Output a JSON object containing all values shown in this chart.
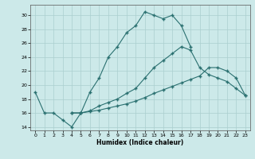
{
  "xlabel": "Humidex (Indice chaleur)",
  "bg_color": "#cce9e9",
  "grid_color": "#aacfcf",
  "line_color": "#2a7070",
  "xlim": [
    -0.5,
    23.5
  ],
  "ylim": [
    13.5,
    31.5
  ],
  "yticks": [
    14,
    16,
    18,
    20,
    22,
    24,
    26,
    28,
    30
  ],
  "xticks": [
    0,
    1,
    2,
    3,
    4,
    5,
    6,
    7,
    8,
    9,
    10,
    11,
    12,
    13,
    14,
    15,
    16,
    17,
    18,
    19,
    20,
    21,
    22,
    23
  ],
  "series1_x": [
    0,
    1,
    2,
    3,
    4,
    5,
    6,
    7,
    8,
    9,
    10,
    11,
    12,
    13,
    14,
    15,
    16,
    17
  ],
  "series1_y": [
    19,
    16,
    16,
    15,
    14,
    16,
    19,
    21,
    24,
    25.5,
    27.5,
    28.5,
    30.5,
    30,
    29.5,
    30,
    28.5,
    25.5
  ],
  "series2_x": [
    4,
    5,
    6,
    7,
    8,
    9,
    10,
    11,
    12,
    13,
    14,
    15,
    16,
    17,
    18,
    19,
    20,
    21,
    22,
    23
  ],
  "series2_y": [
    16,
    16,
    16.3,
    17,
    17.5,
    18,
    18.8,
    19.5,
    21,
    22.5,
    23.5,
    24.5,
    25.5,
    25,
    22.5,
    21.5,
    21,
    20.5,
    19.5,
    18.5
  ],
  "series3_x": [
    4,
    5,
    6,
    7,
    8,
    9,
    10,
    11,
    12,
    13,
    14,
    15,
    16,
    17,
    18,
    19,
    20,
    21,
    22,
    23
  ],
  "series3_y": [
    16,
    16,
    16.2,
    16.4,
    16.7,
    17,
    17.3,
    17.7,
    18.2,
    18.8,
    19.3,
    19.8,
    20.3,
    20.8,
    21.3,
    22.5,
    22.5,
    22,
    21,
    18.5
  ]
}
